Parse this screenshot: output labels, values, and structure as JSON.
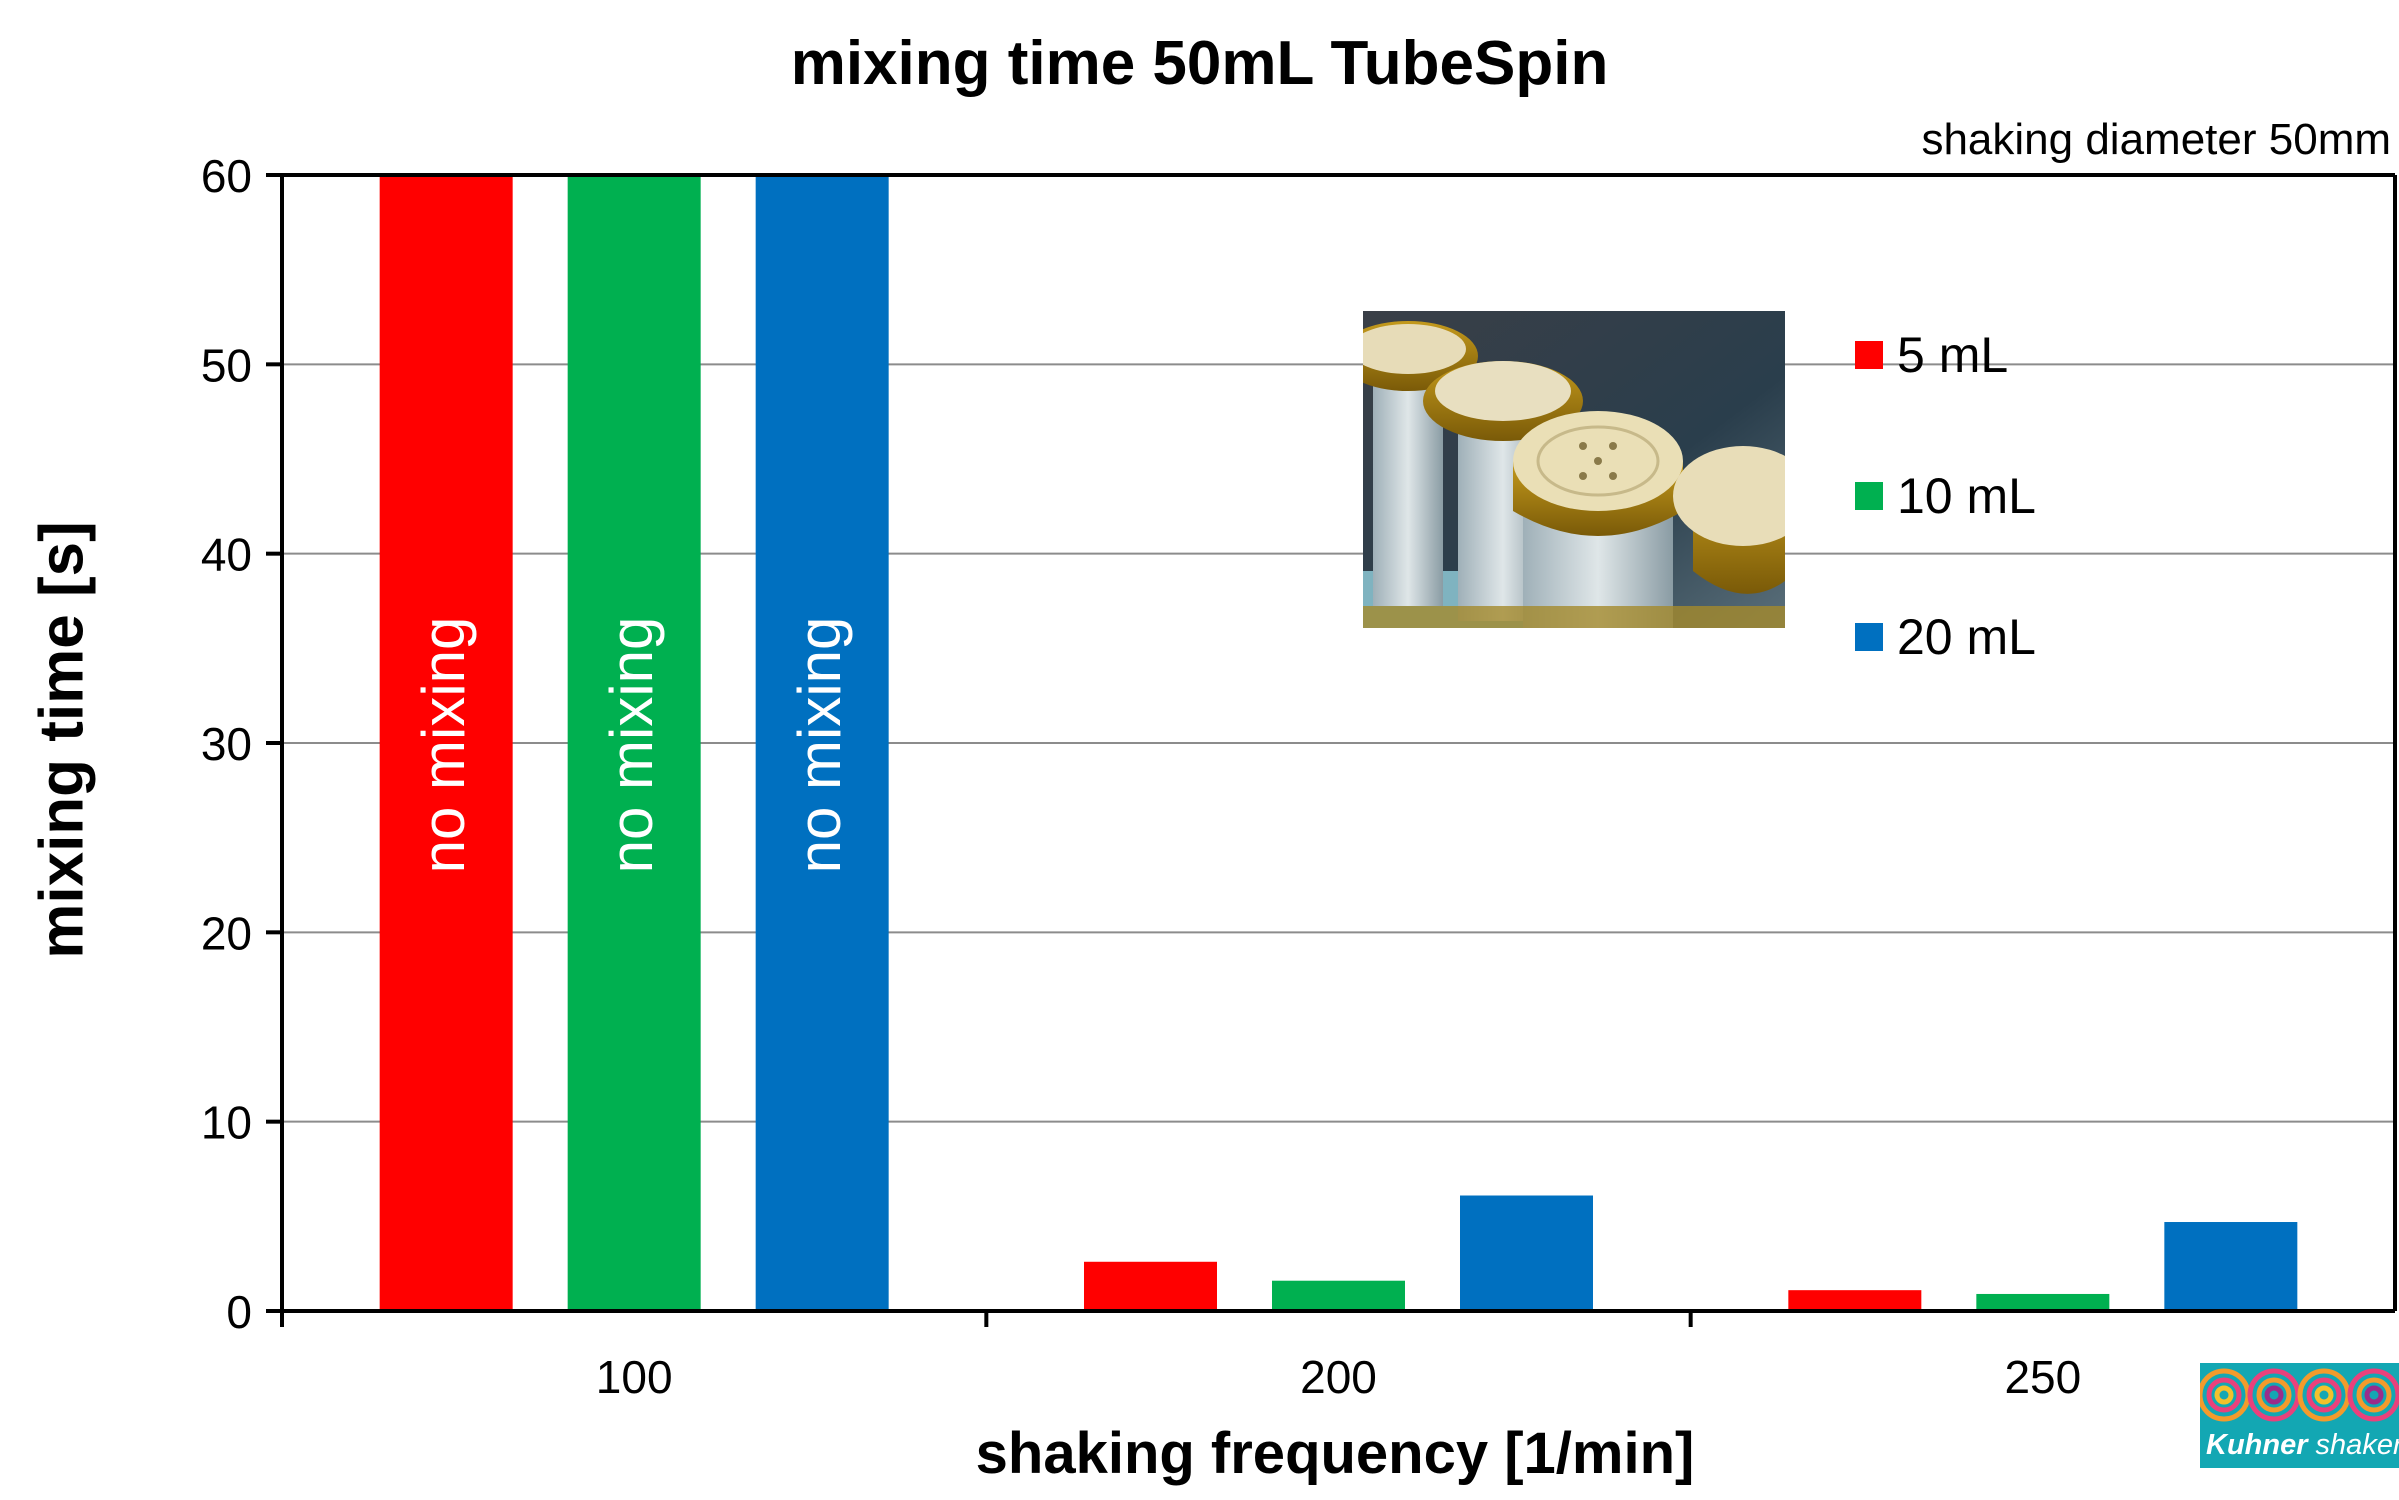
{
  "chart_data": {
    "type": "bar",
    "title": "mixing time 50mL TubeSpin",
    "subtitle": "shaking diameter 50mm",
    "xlabel": "shaking frequency  [1/min]",
    "ylabel": "mixing time [s]",
    "categories": [
      "100",
      "200",
      "250"
    ],
    "series": [
      {
        "name": "5 mL",
        "color": "#ff0000",
        "values": [
          60,
          2.6,
          1.1
        ]
      },
      {
        "name": "10 mL",
        "color": "#00b050",
        "values": [
          60,
          1.6,
          0.9
        ]
      },
      {
        "name": "20 mL",
        "color": "#0070c0",
        "values": [
          60,
          6.1,
          4.7
        ]
      }
    ],
    "bar_annotations": [
      {
        "category": "100",
        "series": "5 mL",
        "text": "no mixing"
      },
      {
        "category": "100",
        "series": "10 mL",
        "text": "no mixing"
      },
      {
        "category": "100",
        "series": "20 mL",
        "text": "no mixing"
      }
    ],
    "ylim": [
      0,
      60
    ],
    "yticks": [
      "0",
      "10",
      "20",
      "30",
      "40",
      "50",
      "60"
    ],
    "grid": true,
    "legend_position": "top-right"
  },
  "images": {
    "photo": {
      "subject": "tubespin-caps-photo"
    },
    "logo": {
      "subject": "kuhner-shaker-logo",
      "text_brand": "Kuhner",
      "text_suffix": " shaker"
    }
  }
}
